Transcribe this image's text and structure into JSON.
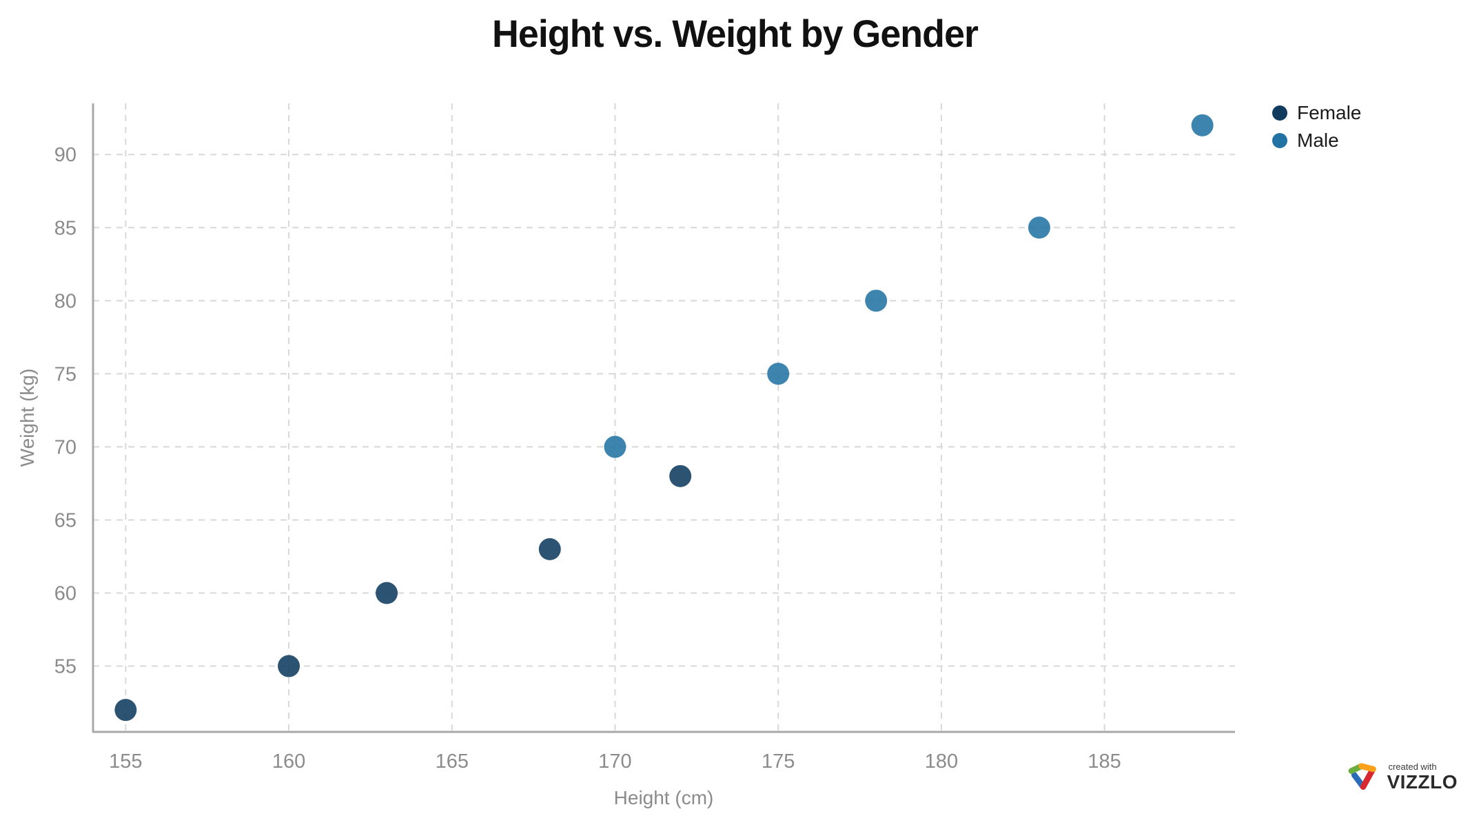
{
  "chart_data": {
    "type": "scatter",
    "title": "Height vs. Weight by Gender",
    "xlabel": "Height (cm)",
    "ylabel": "Weight (kg)",
    "xlim": [
      154,
      189
    ],
    "ylim": [
      50.5,
      93.5
    ],
    "xticks": [
      155,
      160,
      165,
      170,
      175,
      180,
      185
    ],
    "yticks": [
      55,
      60,
      65,
      70,
      75,
      80,
      85,
      90
    ],
    "grid": true,
    "legend_position": "top-right",
    "series": [
      {
        "name": "Female",
        "color": "#103B5F",
        "points": [
          {
            "x": 155,
            "y": 52
          },
          {
            "x": 160,
            "y": 55
          },
          {
            "x": 163,
            "y": 60
          },
          {
            "x": 168,
            "y": 63
          },
          {
            "x": 172,
            "y": 68
          }
        ]
      },
      {
        "name": "Male",
        "color": "#2273A3",
        "points": [
          {
            "x": 170,
            "y": 70
          },
          {
            "x": 175,
            "y": 75
          },
          {
            "x": 178,
            "y": 80
          },
          {
            "x": 183,
            "y": 85
          },
          {
            "x": 188,
            "y": 92
          }
        ]
      }
    ]
  },
  "colors": {
    "axis_line": "#a8a8a8",
    "grid_line": "#d8d8d8",
    "tick_label": "#8b8b8b",
    "point_opacity": "0.88"
  },
  "attribution": {
    "tagline": "created with",
    "brand": "VIZZLO"
  }
}
